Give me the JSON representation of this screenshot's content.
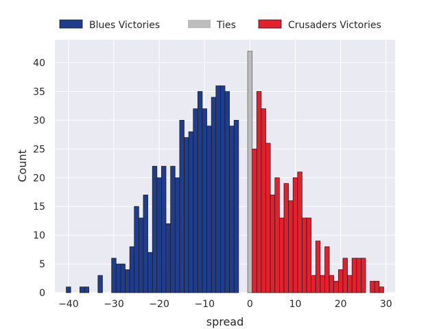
{
  "chart_data": {
    "type": "bar",
    "xlabel": "spread",
    "ylabel": "Count",
    "xlim": [
      -43,
      32
    ],
    "ylim": [
      0,
      44
    ],
    "xticks": [
      -40,
      -30,
      -20,
      -10,
      0,
      10,
      20,
      30
    ],
    "yticks": [
      0,
      5,
      10,
      15,
      20,
      25,
      30,
      35,
      40
    ],
    "grid": true,
    "legend_position": "top-center",
    "colors": {
      "blues": "#1f3d8a",
      "ties": "#bdbdbd",
      "crusaders": "#e3202e",
      "background": "#eaeaf2",
      "grid": "#ffffff",
      "edge": "#1a1a1a"
    },
    "series": [
      {
        "name": "Blues Victories",
        "x": [
          -40,
          -39,
          -38,
          -37,
          -36,
          -35,
          -34,
          -33,
          -32,
          -31,
          -30,
          -29,
          -28,
          -27,
          -26,
          -25,
          -24,
          -23,
          -22,
          -21,
          -20,
          -19,
          -18,
          -17,
          -16,
          -15,
          -14,
          -13,
          -12,
          -11,
          -10,
          -9,
          -8,
          -7,
          -6,
          -5,
          -4,
          -3,
          -2,
          -1
        ],
        "values": [
          1,
          0,
          0,
          1,
          1,
          0,
          0,
          3,
          0,
          0,
          6,
          5,
          5,
          4,
          8,
          15,
          13,
          17,
          7,
          22,
          20,
          22,
          12,
          22,
          20,
          30,
          27,
          28,
          32,
          35,
          32,
          29,
          34,
          36,
          36,
          35,
          29,
          30,
          0,
          0
        ]
      },
      {
        "name": "Ties",
        "x": [
          0
        ],
        "values": [
          42
        ]
      },
      {
        "name": "Crusaders Victories",
        "x": [
          1,
          2,
          3,
          4,
          5,
          6,
          7,
          8,
          9,
          10,
          11,
          12,
          13,
          14,
          15,
          16,
          17,
          18,
          19,
          20,
          21,
          22,
          23,
          24,
          25,
          26,
          27,
          28,
          29
        ],
        "values": [
          25,
          35,
          32,
          26,
          17,
          20,
          13,
          19,
          16,
          20,
          21,
          13,
          13,
          3,
          9,
          3,
          8,
          3,
          2,
          4,
          6,
          3,
          6,
          6,
          6,
          0,
          2,
          2,
          1
        ]
      }
    ]
  }
}
